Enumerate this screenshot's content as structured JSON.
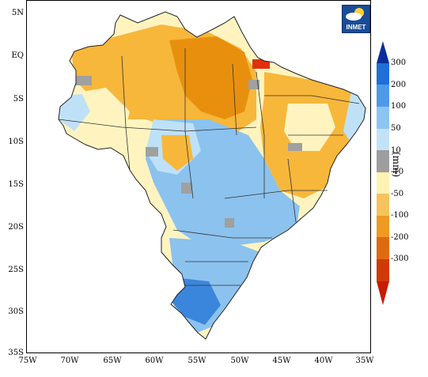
{
  "logo": {
    "text": "INMET",
    "icon": "sun-cloud-icon"
  },
  "axes": {
    "y_ticks": [
      "5N",
      "EQ",
      "5S",
      "10S",
      "15S",
      "20S",
      "25S",
      "30S",
      "35S"
    ],
    "x_ticks": [
      "75W",
      "70W",
      "65W",
      "60W",
      "55W",
      "50W",
      "45W",
      "40W",
      "35W"
    ]
  },
  "legend": {
    "unit": "(mm)",
    "labels": [
      "300",
      "200",
      "100",
      "50",
      "10",
      "-10",
      "-50",
      "-100",
      "-200",
      "-300"
    ],
    "colors": [
      "#0a2f9a",
      "#1f6fd6",
      "#4d9be6",
      "#8ec4f0",
      "#c4e2f7",
      "#9e9e9e",
      "#fff2b3",
      "#f6c45c",
      "#ef9a22",
      "#e06a0f",
      "#d03a06",
      "#c61b00"
    ]
  },
  "map": {
    "description_colors": {
      "dry_strong": "#e8900e",
      "dry": "#f7b73a",
      "neutral": "#fff4c0",
      "wet_light": "#bfe1f7",
      "wet": "#8cc2ee",
      "wet_strong": "#3b86dd",
      "normal": "#a0a0a0",
      "extreme_dry": "#e2300a"
    }
  }
}
